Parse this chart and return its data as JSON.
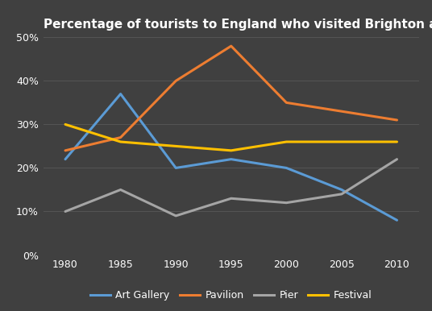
{
  "title": "Percentage of tourists to England who visited Brighton attractions",
  "years": [
    1980,
    1985,
    1990,
    1995,
    2000,
    2005,
    2010
  ],
  "series": {
    "Art Gallery": {
      "values": [
        22,
        37,
        20,
        22,
        20,
        15,
        8
      ],
      "color": "#5B9BD5"
    },
    "Pavilion": {
      "values": [
        24,
        27,
        40,
        48,
        35,
        33,
        31
      ],
      "color": "#ED7D31"
    },
    "Pier": {
      "values": [
        10,
        15,
        9,
        13,
        12,
        14,
        22
      ],
      "color": "#A5A5A5"
    },
    "Festival": {
      "values": [
        30,
        26,
        25,
        24,
        26,
        26,
        26
      ],
      "color": "#FFC000"
    }
  },
  "ylim": [
    0,
    50
  ],
  "yticks": [
    0,
    10,
    20,
    30,
    40,
    50
  ],
  "ytick_labels": [
    "0%",
    "10%",
    "20%",
    "30%",
    "40%",
    "50%"
  ],
  "xlim_left": 1978,
  "xlim_right": 2012,
  "background_color": "#404040",
  "grid_color": "#555555",
  "text_color": "#ffffff",
  "title_fontsize": 11,
  "legend_fontsize": 9,
  "tick_fontsize": 9,
  "linewidth": 2.2
}
